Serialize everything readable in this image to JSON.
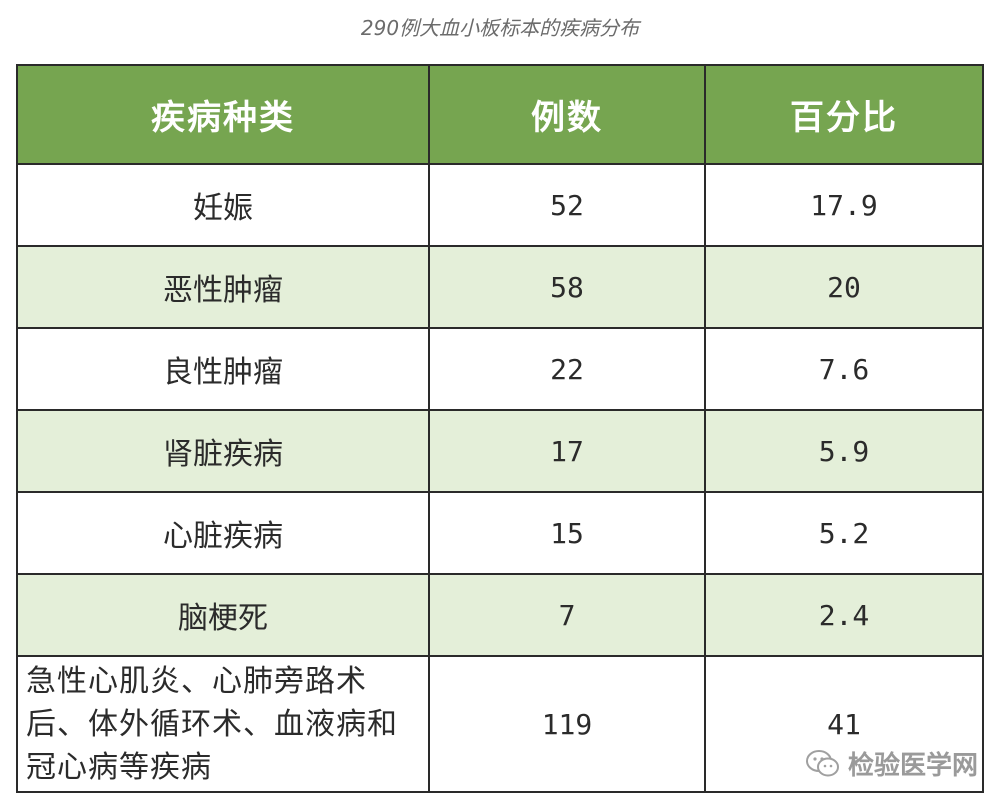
{
  "caption": "290例大血小板标本的疾病分布",
  "table": {
    "headers": [
      "疾病种类",
      "例数",
      "百分比"
    ],
    "rows": [
      {
        "disease": "妊娠",
        "count": "52",
        "percent": "17.9"
      },
      {
        "disease": "恶性肿瘤",
        "count": "58",
        "percent": "20"
      },
      {
        "disease": "良性肿瘤",
        "count": "22",
        "percent": "7.6"
      },
      {
        "disease": "肾脏疾病",
        "count": "17",
        "percent": "5.9"
      },
      {
        "disease": "心脏疾病",
        "count": "15",
        "percent": "5.2"
      },
      {
        "disease": "脑梗死",
        "count": "7",
        "percent": "2.4"
      },
      {
        "disease": "急性心肌炎、心肺旁路术后、体外循环术、血液病和冠心病等疾病",
        "count": "119",
        "percent": "41"
      }
    ]
  },
  "watermark": {
    "icon": "wechat-icon",
    "text": "检验医学网"
  },
  "colors": {
    "header_bg": "#76a550",
    "alt_row_bg": "#e4efd9",
    "border": "#2a2a2a"
  }
}
